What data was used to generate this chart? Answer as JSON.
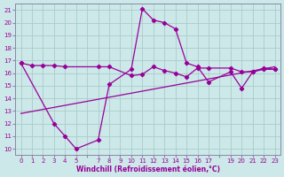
{
  "xlabel": "Windchill (Refroidissement éolien,°C)",
  "bg_color": "#cce8e8",
  "line_color": "#990099",
  "grid_color": "#aacccc",
  "spine_color": "#8888aa",
  "ylim": [
    9.5,
    21.5
  ],
  "xlim": [
    -0.5,
    23.5
  ],
  "yticks": [
    10,
    11,
    12,
    13,
    14,
    15,
    16,
    17,
    18,
    19,
    20,
    21
  ],
  "xticks": [
    0,
    1,
    2,
    3,
    4,
    5,
    6,
    7,
    8,
    9,
    10,
    11,
    12,
    13,
    14,
    15,
    16,
    17,
    18,
    19,
    20,
    21,
    22,
    23
  ],
  "xtick_labels": [
    "0",
    "1",
    "2",
    "3",
    "4",
    "5",
    "",
    "7",
    "8",
    "9",
    "10",
    "11",
    "12",
    "13",
    "14",
    "15",
    "16",
    "17",
    "",
    "19",
    "20",
    "21",
    "22",
    "23"
  ],
  "line1_x": [
    0,
    1,
    2,
    3,
    4,
    7,
    8,
    10,
    11,
    12,
    13,
    14,
    15,
    16,
    17,
    19,
    20,
    21,
    22,
    23
  ],
  "line1_y": [
    16.8,
    16.6,
    16.6,
    16.6,
    16.5,
    16.5,
    16.5,
    15.8,
    15.9,
    16.5,
    16.2,
    16.0,
    15.7,
    16.4,
    16.4,
    16.4,
    16.1,
    16.1,
    16.4,
    16.3
  ],
  "line2_x": [
    0,
    3,
    4,
    5,
    7,
    8,
    10,
    11,
    12,
    13,
    14,
    15,
    16,
    17,
    19,
    20,
    21,
    22,
    23
  ],
  "line2_y": [
    16.8,
    12.0,
    11.0,
    10.0,
    10.7,
    15.1,
    16.3,
    21.1,
    20.2,
    20.0,
    19.5,
    16.8,
    16.5,
    15.3,
    16.1,
    14.8,
    16.1,
    16.3,
    16.3
  ],
  "line3_x": [
    0,
    23
  ],
  "line3_y": [
    12.8,
    16.5
  ]
}
